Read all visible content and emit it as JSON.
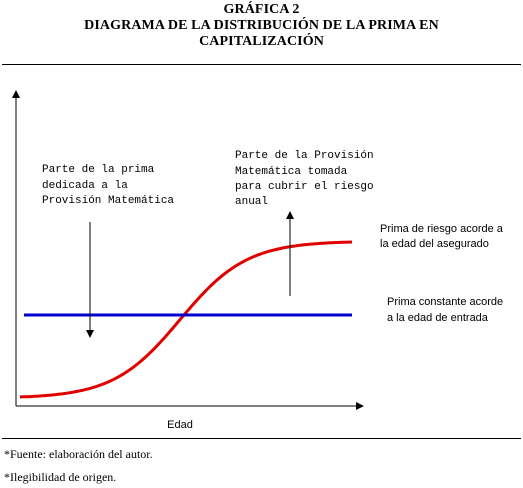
{
  "header": {
    "title_line1": "GRÁFICA 2",
    "title_line2": "DIAGRAMA DE LA DISTRIBUCIÓN DE LA PRIMA EN",
    "title_line3": "CAPITALIZACIÓN"
  },
  "chart_data": {
    "type": "line",
    "title": "DIAGRAMA DE LA DISTRIBUCIÓN DE LA PRIMA EN CAPITALIZACIÓN",
    "xlabel": "Edad",
    "ylabel": "",
    "grid": false,
    "series": [
      {
        "name": "Prima de riesgo acorde a la edad del asegurado",
        "color": "#e00000",
        "shape": "logistic-rising"
      },
      {
        "name": "Prima constante acorde a la edad de entrada",
        "color": "#0000cc",
        "shape": "constant"
      }
    ],
    "annotations": {
      "down_arrow": [
        "Parte de la prima",
        "dedicada a la",
        "Provisión Matemática"
      ],
      "up_arrow": [
        "Parte de la Provisión",
        "Matemática tomada",
        "para cubrir el riesgo",
        "anual"
      ],
      "red_label": [
        "Prima de riesgo acorde a",
        "la edad del asegurado"
      ],
      "blue_label": [
        "Prima constante acorde",
        "a la edad de entrada"
      ]
    }
  },
  "footnotes": {
    "source": "*Fuente: elaboración del autor.",
    "legibility": "*Ilegibilidad de origen."
  }
}
